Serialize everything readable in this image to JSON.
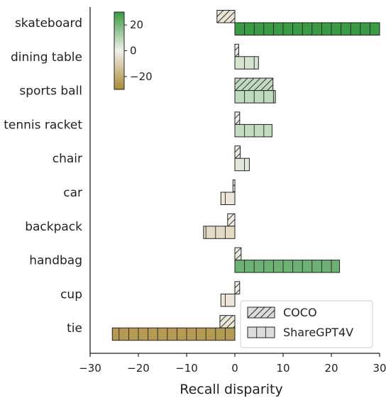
{
  "chart_data": {
    "type": "bar",
    "orientation": "horizontal",
    "categories": [
      "skateboard",
      "dining table",
      "sports ball",
      "tennis racket",
      "chair",
      "car",
      "backpack",
      "handbag",
      "cup",
      "tie"
    ],
    "series": [
      {
        "name": "COCO",
        "hatch": "diagonal",
        "values": [
          -3.7,
          0.8,
          7.9,
          1.0,
          1.1,
          -0.4,
          -1.5,
          1.3,
          1.0,
          -3.1
        ]
      },
      {
        "name": "ShareGPT4V",
        "hatch": "vertical",
        "values": [
          30.0,
          4.9,
          8.4,
          7.7,
          3.0,
          -2.9,
          -6.5,
          21.7,
          -2.9,
          -25.4
        ]
      }
    ],
    "xlabel": "Recall disparity",
    "xlim": [
      -30,
      30
    ],
    "xticks": [
      "−30",
      "−20",
      "−10",
      "0",
      "10",
      "20",
      "30"
    ],
    "colorbar": {
      "range": [
        -30,
        30
      ],
      "ticks": [
        "20",
        "0",
        "−20"
      ],
      "colors": {
        "low": "#a98b35",
        "mid": "#f3f1ea",
        "high": "#3a9a45"
      }
    },
    "legend": {
      "position": "bottom-right",
      "entries": [
        "COCO",
        "ShareGPT4V"
      ]
    },
    "grid": false
  }
}
